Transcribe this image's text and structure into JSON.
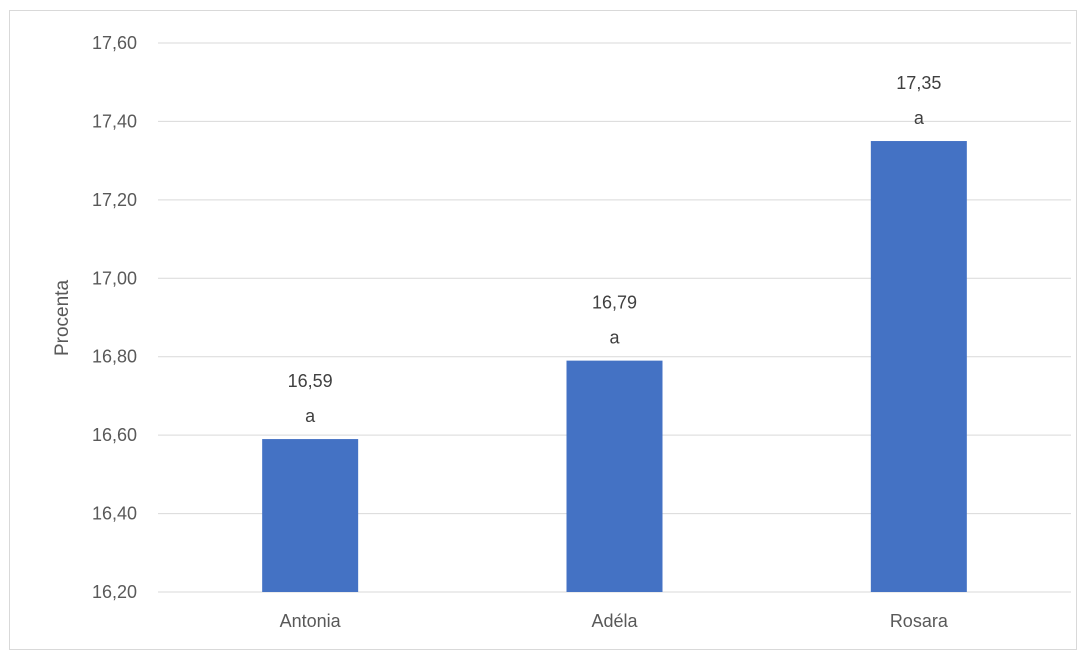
{
  "chart_data": {
    "type": "bar",
    "title": "",
    "xlabel": "",
    "ylabel": "Procenta",
    "categories": [
      "Antonia",
      "Adéla",
      "Rosara"
    ],
    "values": [
      16.59,
      16.79,
      17.35
    ],
    "value_labels": [
      "16,59",
      "16,79",
      "17,35"
    ],
    "significance_letters": [
      "a",
      "a",
      "a"
    ],
    "ylim": [
      16.2,
      17.6
    ],
    "yticks": [
      16.2,
      16.4,
      16.6,
      16.8,
      17.0,
      17.2,
      17.4,
      17.6
    ],
    "ytick_labels": [
      "16,20",
      "16,40",
      "16,60",
      "16,80",
      "17,00",
      "17,20",
      "17,40",
      "17,60"
    ],
    "grid": true,
    "legend": "none",
    "bar_color": "#4472c4",
    "grid_color": "#d9d9d9"
  }
}
